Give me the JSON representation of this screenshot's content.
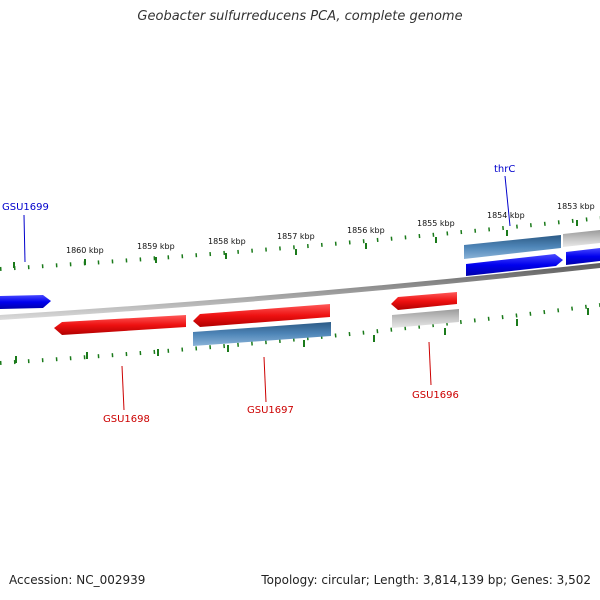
{
  "title": "Geobacter sulfurreducens PCA, complete genome",
  "footer": {
    "accession": "Accession: NC_002939",
    "summary": "Topology: circular; Length: 3,814,139 bp; Genes: 3,502"
  },
  "colors": {
    "forward_gene": "#0000ee",
    "reverse_gene": "#ee1111",
    "cds": "#4a7fae",
    "other": "#b8b8b8",
    "backbone": "#888888",
    "ticks": "#1a7a1a",
    "forward_label": "#0000cc",
    "reverse_label": "#cc0000"
  },
  "ruler": [
    "1860 kbp",
    "1859 kbp",
    "1858 kbp",
    "1857 kbp",
    "1856 kbp",
    "1855 kbp",
    "1854 kbp",
    "1853 kbp"
  ],
  "gene_labels": [
    {
      "name": "GSU1699",
      "strand": "forward"
    },
    {
      "name": "thrC",
      "strand": "forward"
    },
    {
      "name": "GSU1698",
      "strand": "reverse"
    },
    {
      "name": "GSU1697",
      "strand": "reverse"
    },
    {
      "name": "GSU1696",
      "strand": "reverse"
    }
  ]
}
